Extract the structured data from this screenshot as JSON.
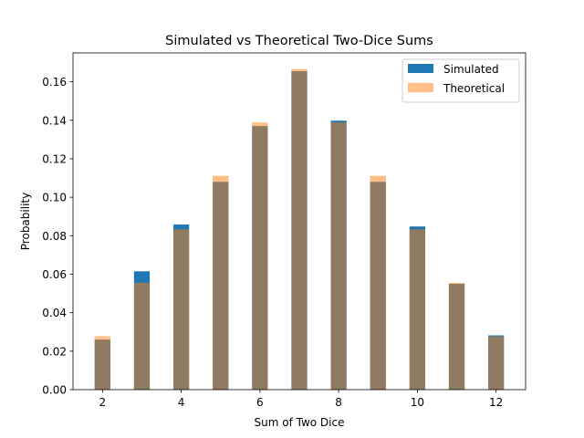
{
  "chart_data": {
    "type": "bar",
    "title": "Simulated vs Theoretical Two-Dice Sums",
    "xlabel": "Sum of Two Dice",
    "ylabel": "Probability",
    "categories": [
      2,
      3,
      4,
      5,
      6,
      7,
      8,
      9,
      10,
      11,
      12
    ],
    "series": [
      {
        "name": "Simulated",
        "color": "#1f77b4",
        "opacity": 1.0,
        "values": [
          0.026,
          0.0615,
          0.0858,
          0.108,
          0.137,
          0.1655,
          0.1398,
          0.108,
          0.0848,
          0.055,
          0.0282
        ]
      },
      {
        "name": "Theoretical",
        "color": "#ff7f0e",
        "opacity": 0.5,
        "values": [
          0.02778,
          0.05556,
          0.08333,
          0.11111,
          0.13889,
          0.16667,
          0.13889,
          0.11111,
          0.08333,
          0.05556,
          0.02778
        ]
      }
    ],
    "xlim": [
      1.25,
      12.75
    ],
    "ylim": [
      0,
      0.175
    ],
    "xticks": [
      2,
      4,
      6,
      8,
      10,
      12
    ],
    "yticks": [
      0.0,
      0.02,
      0.04,
      0.06,
      0.08,
      0.1,
      0.12,
      0.14,
      0.16
    ],
    "ytick_labels": [
      "0.00",
      "0.02",
      "0.04",
      "0.06",
      "0.08",
      "0.10",
      "0.12",
      "0.14",
      "0.16"
    ],
    "grid": false,
    "legend_position": "top-right"
  }
}
